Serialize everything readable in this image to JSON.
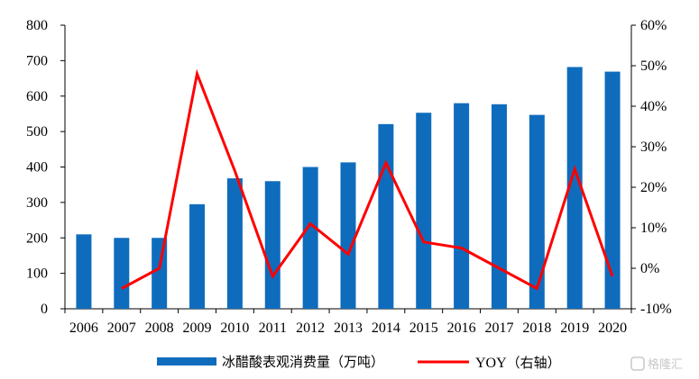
{
  "chart_data": {
    "type": "bar+line",
    "categories": [
      "2006",
      "2007",
      "2008",
      "2009",
      "2010",
      "2011",
      "2012",
      "2013",
      "2014",
      "2015",
      "2016",
      "2017",
      "2018",
      "2019",
      "2020"
    ],
    "series": [
      {
        "name": "冰醋酸表观消费量（万吨）",
        "type": "bar",
        "axis": "left",
        "color": "#0f6cbd",
        "values": [
          210,
          200,
          200,
          295,
          368,
          360,
          400,
          413,
          521,
          553,
          580,
          577,
          547,
          682,
          669
        ]
      },
      {
        "name": "YOY（右轴）",
        "type": "line",
        "axis": "right",
        "color": "#ff0000",
        "values": [
          null,
          -5.0,
          0.0,
          48.0,
          24.0,
          -2.0,
          11.0,
          3.5,
          26.0,
          6.5,
          5.0,
          0.0,
          -5.0,
          24.5,
          -2.0
        ]
      }
    ],
    "yleft": {
      "min": 0,
      "max": 800,
      "ticks": [
        "0",
        "100",
        "200",
        "300",
        "400",
        "500",
        "600",
        "700",
        "800"
      ]
    },
    "yright": {
      "min": -10,
      "max": 60,
      "ticks": [
        "-10%",
        "0%",
        "10%",
        "20%",
        "30%",
        "40%",
        "50%",
        "60%"
      ]
    },
    "grid": false,
    "legend_position": "bottom"
  },
  "legend": {
    "bar_label": "冰醋酸表观消费量（万吨）",
    "line_label_latin": "YOY",
    "line_label_cjk": "（右轴）"
  },
  "watermark": {
    "text": "格隆汇"
  }
}
